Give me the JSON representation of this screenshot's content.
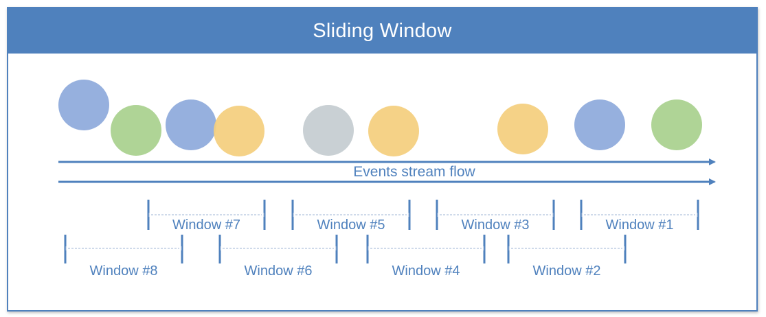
{
  "title": "Sliding Window",
  "stream_label": "Events stream flow",
  "colors": {
    "accent": "#4f81bd",
    "blue": "#8eaadb",
    "green": "#a9d18e",
    "orange": "#f4cf7e",
    "gray": "#c5ccd1"
  },
  "events": [
    {
      "color": "blue"
    },
    {
      "color": "green"
    },
    {
      "color": "blue"
    },
    {
      "color": "orange"
    },
    {
      "color": "gray"
    },
    {
      "color": "orange"
    },
    {
      "color": "orange"
    },
    {
      "color": "blue"
    },
    {
      "color": "green"
    }
  ],
  "windows_top": [
    {
      "label": "Window #7"
    },
    {
      "label": "Window #5"
    },
    {
      "label": "Window #3"
    },
    {
      "label": "Window #1"
    }
  ],
  "windows_bottom": [
    {
      "label": "Window #8"
    },
    {
      "label": "Window #6"
    },
    {
      "label": "Window #4"
    },
    {
      "label": "Window #2"
    }
  ]
}
